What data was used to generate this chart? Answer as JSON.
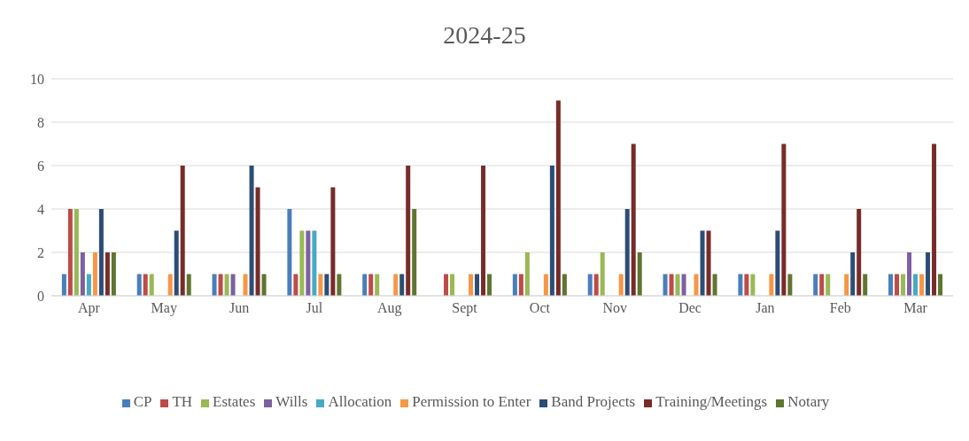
{
  "chart_data": {
    "type": "bar",
    "title": "2024-25",
    "categories": [
      "Apr",
      "May",
      "Jun",
      "Jul",
      "Aug",
      "Sept",
      "Oct",
      "Nov",
      "Dec",
      "Jan",
      "Feb",
      "Mar"
    ],
    "series": [
      {
        "name": "CP",
        "color": "#4a7ebb",
        "values": [
          1,
          1,
          1,
          4,
          1,
          0,
          1,
          1,
          1,
          1,
          1,
          1
        ]
      },
      {
        "name": "TH",
        "color": "#be4b48",
        "values": [
          4,
          1,
          1,
          1,
          1,
          1,
          1,
          1,
          1,
          1,
          1,
          1
        ]
      },
      {
        "name": "Estates",
        "color": "#98b954",
        "values": [
          4,
          1,
          1,
          3,
          1,
          1,
          2,
          2,
          1,
          1,
          1,
          1
        ]
      },
      {
        "name": "Wills",
        "color": "#7d60a0",
        "values": [
          2,
          0,
          1,
          3,
          0,
          0,
          0,
          0,
          1,
          0,
          0,
          2
        ]
      },
      {
        "name": "Allocation",
        "color": "#46aac5",
        "values": [
          1,
          0,
          0,
          3,
          0,
          0,
          0,
          0,
          0,
          0,
          0,
          1
        ]
      },
      {
        "name": "Permission to Enter",
        "color": "#f79646",
        "values": [
          2,
          1,
          1,
          1,
          1,
          1,
          1,
          1,
          1,
          1,
          1,
          1
        ]
      },
      {
        "name": "Band Projects",
        "color": "#2c4d75",
        "values": [
          4,
          3,
          6,
          1,
          1,
          1,
          6,
          4,
          3,
          3,
          2,
          2
        ]
      },
      {
        "name": "Training/Meetings",
        "color": "#772c2a",
        "values": [
          2,
          6,
          5,
          5,
          6,
          6,
          9,
          7,
          3,
          7,
          4,
          7
        ]
      },
      {
        "name": "Notary",
        "color": "#5f7530",
        "values": [
          2,
          1,
          1,
          1,
          4,
          1,
          1,
          2,
          1,
          1,
          1,
          1
        ]
      }
    ],
    "ylim": [
      0,
      10
    ],
    "yticks": [
      0,
      2,
      4,
      6,
      8,
      10
    ],
    "grid": "y",
    "legend": "bottom"
  }
}
